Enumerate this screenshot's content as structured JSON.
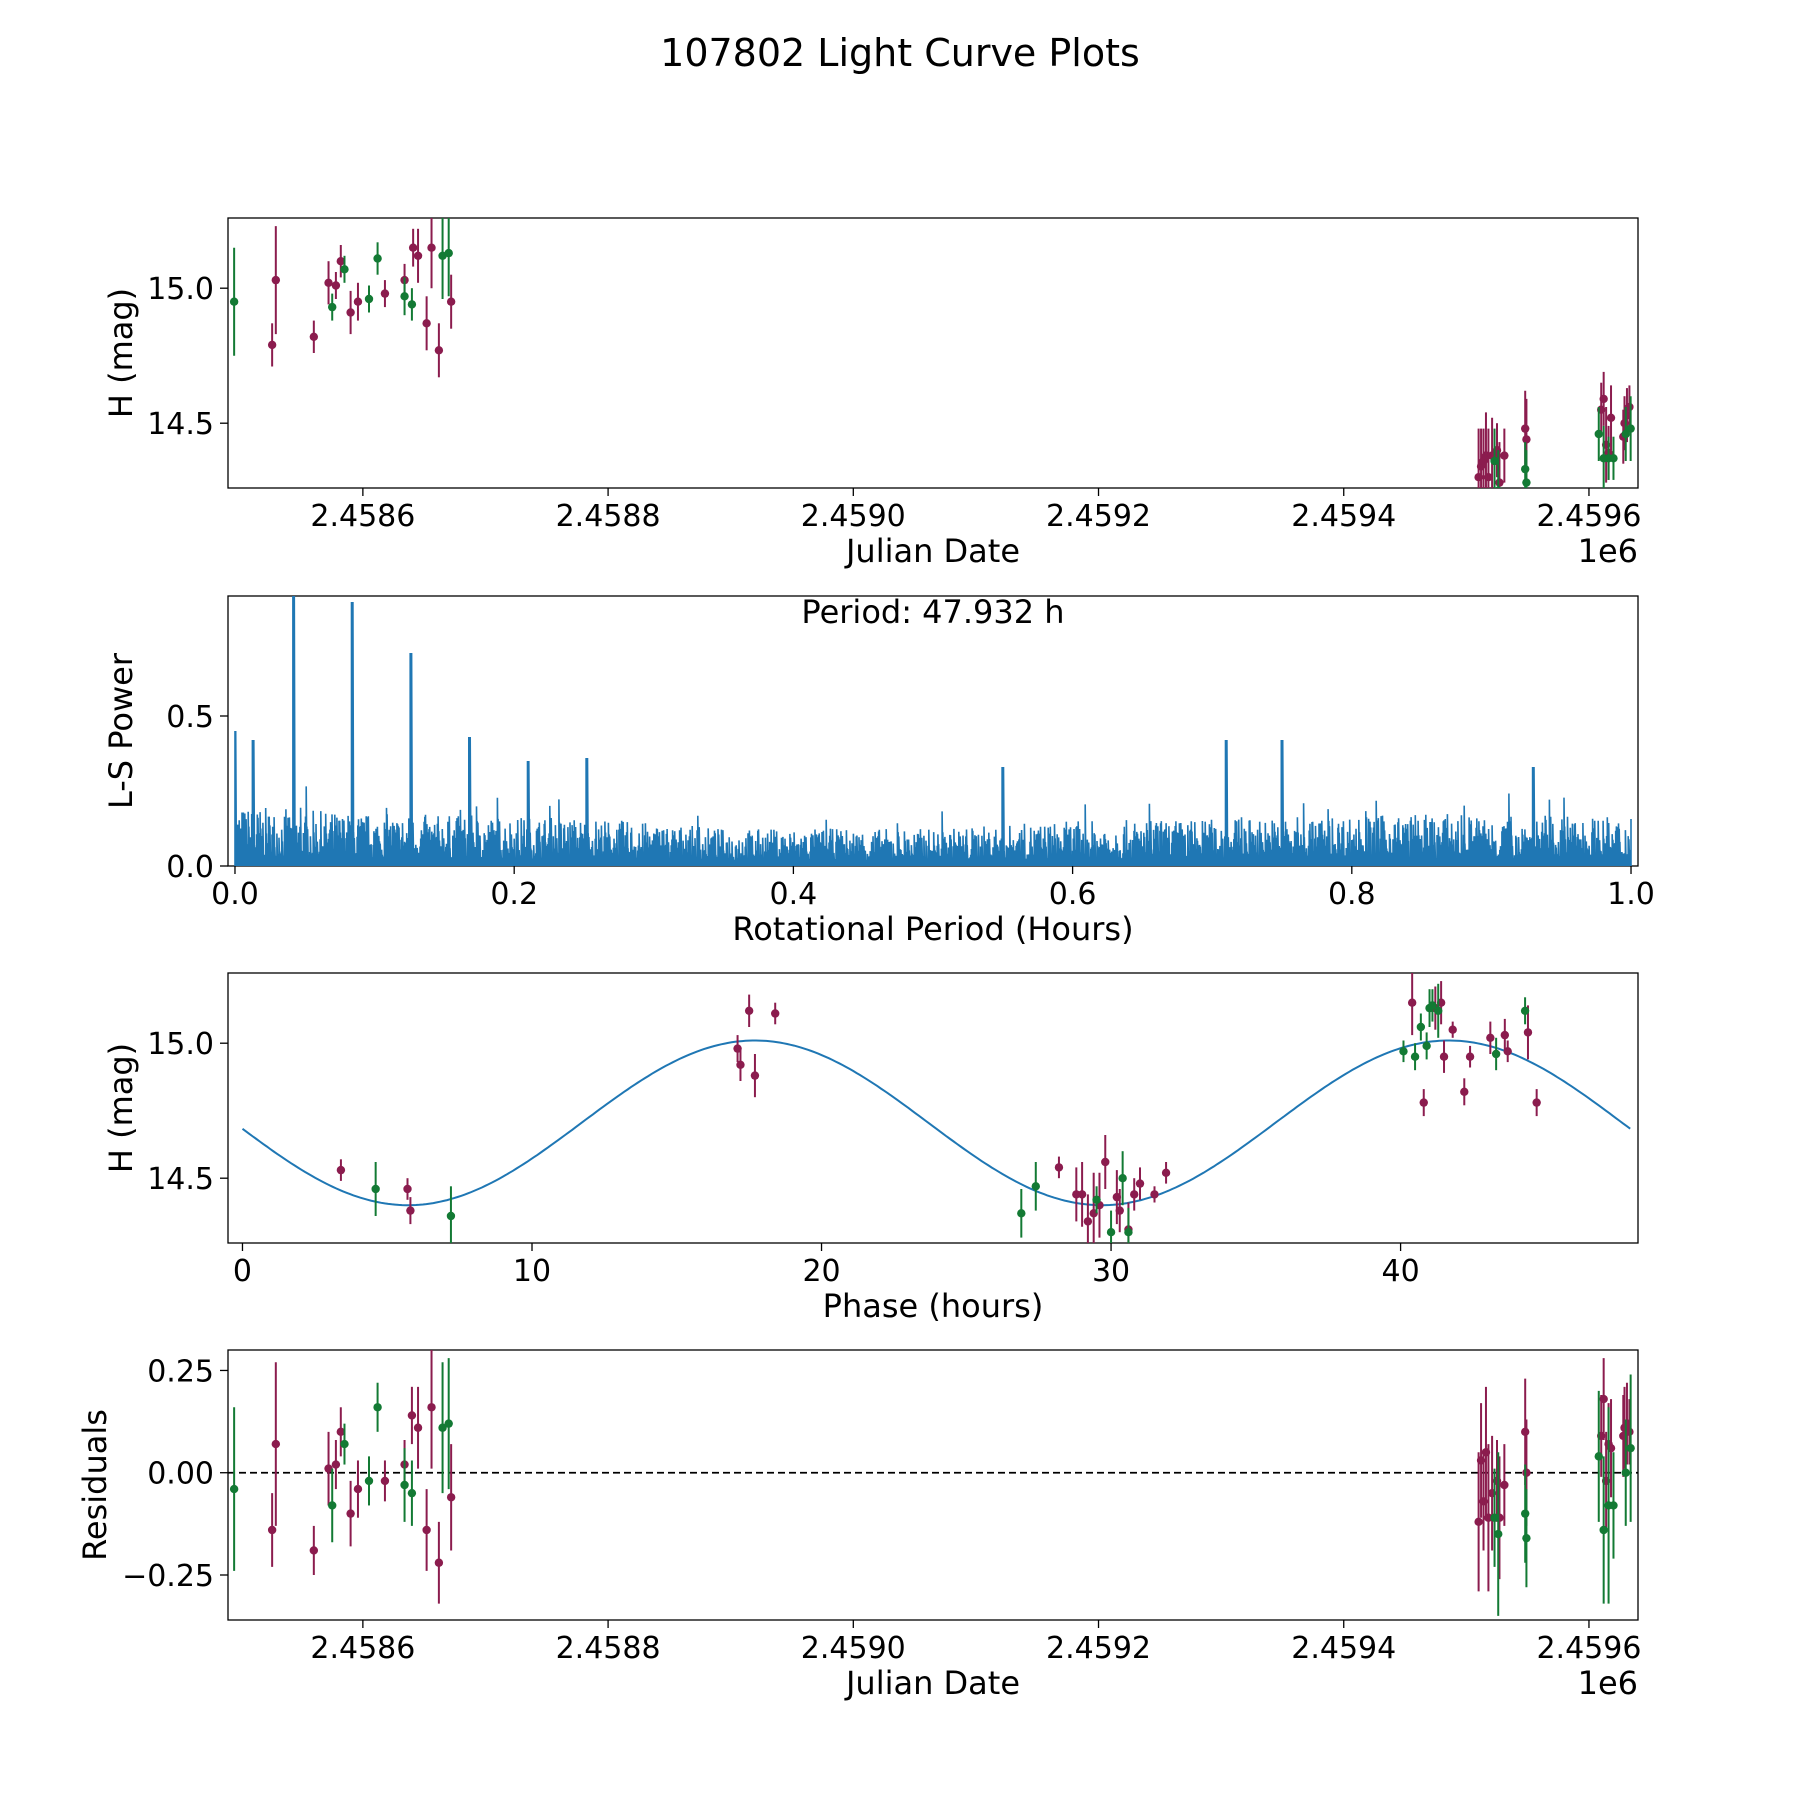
{
  "figure": {
    "title": "107802 Light Curve Plots",
    "colors": {
      "fit": "#1f77b4",
      "filter_a": "#8b1c4e",
      "filter_b": "#137a34",
      "axis": "#000000",
      "zero_line": "#000000"
    }
  },
  "chart_data": [
    {
      "id": "lightcurve",
      "type": "scatter",
      "xlabel": "Julian Date",
      "ylabel": "H (mag)",
      "offset_label": "1e6",
      "xlim": [
        2458490,
        2459640
      ],
      "ylim": [
        14.26,
        15.26
      ],
      "xticks": [
        2458600,
        2458800,
        2459000,
        2459200,
        2459400,
        2459600
      ],
      "xtick_labels": [
        "2.4586",
        "2.4588",
        "2.4590",
        "2.4592",
        "2.4594",
        "2.4596"
      ],
      "yticks": [
        14.5,
        15.0
      ],
      "ytick_labels": [
        "14.5",
        "15.0"
      ],
      "series": [
        {
          "name": "filter_a",
          "color": "#8b1c4e",
          "points": [
            [
              2458526,
              14.79,
              0.08
            ],
            [
              2458529,
              15.03,
              0.2
            ],
            [
              2458560,
              14.82,
              0.06
            ],
            [
              2458572,
              15.02,
              0.08
            ],
            [
              2458578,
              15.01,
              0.05
            ],
            [
              2458582,
              15.1,
              0.06
            ],
            [
              2458590,
              14.91,
              0.08
            ],
            [
              2458596,
              14.95,
              0.07
            ],
            [
              2458618,
              14.98,
              0.05
            ],
            [
              2458634,
              15.03,
              0.06
            ],
            [
              2458641,
              15.15,
              0.07
            ],
            [
              2458645,
              15.12,
              0.1
            ],
            [
              2458652,
              14.87,
              0.1
            ],
            [
              2458656,
              15.15,
              0.15
            ],
            [
              2458662,
              14.77,
              0.1
            ],
            [
              2458672,
              14.95,
              0.1
            ],
            [
              2459510,
              14.3,
              0.18
            ],
            [
              2459512,
              14.34,
              0.14
            ],
            [
              2459514,
              14.36,
              0.12
            ],
            [
              2459516,
              14.38,
              0.16
            ],
            [
              2459518,
              14.3,
              0.18
            ],
            [
              2459521,
              14.38,
              0.14
            ],
            [
              2459525,
              14.4,
              0.1
            ],
            [
              2459527,
              14.28,
              0.15
            ],
            [
              2459531,
              14.38,
              0.1
            ],
            [
              2459548,
              14.48,
              0.14
            ],
            [
              2459549,
              14.44,
              0.15
            ],
            [
              2459610,
              14.55,
              0.1
            ],
            [
              2459612,
              14.59,
              0.1
            ],
            [
              2459614,
              14.42,
              0.14
            ],
            [
              2459616,
              14.39,
              0.1
            ],
            [
              2459618,
              14.52,
              0.12
            ],
            [
              2459628,
              14.45,
              0.1
            ],
            [
              2459629,
              14.5,
              0.1
            ],
            [
              2459631,
              14.53,
              0.1
            ],
            [
              2459633,
              14.56,
              0.08
            ]
          ]
        },
        {
          "name": "filter_b",
          "color": "#137a34",
          "points": [
            [
              2458495,
              14.95,
              0.2
            ],
            [
              2458575,
              14.93,
              0.05
            ],
            [
              2458585,
              15.07,
              0.05
            ],
            [
              2458605,
              14.96,
              0.05
            ],
            [
              2458612,
              15.11,
              0.06
            ],
            [
              2458634,
              14.97,
              0.07
            ],
            [
              2458640,
              14.94,
              0.06
            ],
            [
              2458665,
              15.12,
              0.16
            ],
            [
              2458670,
              15.13,
              0.16
            ],
            [
              2459523,
              14.36,
              0.12
            ],
            [
              2459526,
              14.25,
              0.15
            ],
            [
              2459548,
              14.33,
              0.1
            ],
            [
              2459549,
              14.28,
              0.12
            ],
            [
              2459608,
              14.46,
              0.1
            ],
            [
              2459612,
              14.37,
              0.12
            ],
            [
              2459616,
              14.37,
              0.08
            ],
            [
              2459620,
              14.37,
              0.08
            ],
            [
              2459630,
              14.46,
              0.1
            ],
            [
              2459634,
              14.48,
              0.12
            ]
          ]
        }
      ]
    },
    {
      "id": "periodogram",
      "type": "line",
      "xlabel": "Rotational Period (Hours)",
      "ylabel": "L-S Power",
      "annotation": "Period: 47.932 h",
      "xlim": [
        -0.005,
        1.005
      ],
      "ylim": [
        0,
        0.9
      ],
      "xticks": [
        0.0,
        0.2,
        0.4,
        0.6,
        0.8,
        1.0
      ],
      "xtick_labels": [
        "0.0",
        "0.2",
        "0.4",
        "0.6",
        "0.8",
        "1.0"
      ],
      "yticks": [
        0.0,
        0.5
      ],
      "ytick_labels": [
        "0.0",
        "0.5"
      ],
      "color": "#1f77b4",
      "noise_profile": [
        [
          0.0,
          0.16
        ],
        [
          0.1,
          0.14
        ],
        [
          0.25,
          0.13
        ],
        [
          0.35,
          0.1
        ],
        [
          0.5,
          0.1
        ],
        [
          0.6,
          0.12
        ],
        [
          0.75,
          0.13
        ],
        [
          0.85,
          0.14
        ],
        [
          1.0,
          0.13
        ]
      ],
      "peaks": [
        [
          0.0,
          0.45
        ],
        [
          0.013,
          0.42
        ],
        [
          0.042,
          0.9
        ],
        [
          0.084,
          0.88
        ],
        [
          0.126,
          0.71
        ],
        [
          0.168,
          0.43
        ],
        [
          0.21,
          0.35
        ],
        [
          0.252,
          0.36
        ],
        [
          0.55,
          0.33
        ],
        [
          0.71,
          0.42
        ],
        [
          0.75,
          0.42
        ],
        [
          0.93,
          0.33
        ]
      ]
    },
    {
      "id": "phased",
      "type": "scatter",
      "xlabel": "Phase (hours)",
      "ylabel": "H (mag)",
      "xlim": [
        -0.5,
        48.2
      ],
      "ylim": [
        14.26,
        15.26
      ],
      "xticks": [
        0,
        10,
        20,
        30,
        40
      ],
      "xtick_labels": [
        "0",
        "10",
        "20",
        "30",
        "40"
      ],
      "yticks": [
        14.5,
        15.0
      ],
      "ytick_labels": [
        "14.5",
        "15.0"
      ],
      "fit": {
        "type": "sine",
        "mean": 14.705,
        "amplitude": 0.305,
        "period": 23.966,
        "x_at_max": 17.7,
        "x_range": [
          0,
          47.93
        ],
        "color": "#1f77b4"
      },
      "series": [
        {
          "name": "filter_a",
          "color": "#8b1c4e",
          "points": [
            [
              3.4,
              14.53,
              0.04
            ],
            [
              5.7,
              14.46,
              0.04
            ],
            [
              5.8,
              14.38,
              0.05
            ],
            [
              17.1,
              14.98,
              0.05
            ],
            [
              17.2,
              14.92,
              0.06
            ],
            [
              17.5,
              15.12,
              0.06
            ],
            [
              17.7,
              14.88,
              0.08
            ],
            [
              18.4,
              15.11,
              0.04
            ],
            [
              28.2,
              14.54,
              0.04
            ],
            [
              28.8,
              14.44,
              0.1
            ],
            [
              29.0,
              14.44,
              0.12
            ],
            [
              29.2,
              14.34,
              0.1
            ],
            [
              29.4,
              14.37,
              0.15
            ],
            [
              29.6,
              14.4,
              0.12
            ],
            [
              29.8,
              14.56,
              0.1
            ],
            [
              30.2,
              14.43,
              0.1
            ],
            [
              30.3,
              14.38,
              0.08
            ],
            [
              30.6,
              14.31,
              0.1
            ],
            [
              30.8,
              14.44,
              0.06
            ],
            [
              31.0,
              14.48,
              0.06
            ],
            [
              31.5,
              14.44,
              0.03
            ],
            [
              31.9,
              14.52,
              0.04
            ],
            [
              40.4,
              15.15,
              0.12
            ],
            [
              40.8,
              14.78,
              0.05
            ],
            [
              41.2,
              15.13,
              0.08
            ],
            [
              41.4,
              15.15,
              0.08
            ],
            [
              41.5,
              14.95,
              0.06
            ],
            [
              41.8,
              15.05,
              0.03
            ],
            [
              42.2,
              14.82,
              0.05
            ],
            [
              42.4,
              14.95,
              0.04
            ],
            [
              43.1,
              15.02,
              0.06
            ],
            [
              43.6,
              15.03,
              0.06
            ],
            [
              43.7,
              14.97,
              0.04
            ],
            [
              44.4,
              15.04,
              0.1
            ],
            [
              44.7,
              14.78,
              0.05
            ]
          ]
        },
        {
          "name": "filter_b",
          "color": "#137a34",
          "points": [
            [
              4.6,
              14.46,
              0.1
            ],
            [
              7.2,
              14.36,
              0.11
            ],
            [
              26.9,
              14.37,
              0.09
            ],
            [
              27.4,
              14.47,
              0.09
            ],
            [
              29.5,
              14.42,
              0.05
            ],
            [
              30.0,
              14.3,
              0.08
            ],
            [
              30.4,
              14.5,
              0.1
            ],
            [
              30.6,
              14.3,
              0.09
            ],
            [
              40.1,
              14.97,
              0.04
            ],
            [
              40.5,
              14.95,
              0.05
            ],
            [
              40.7,
              15.06,
              0.05
            ],
            [
              40.9,
              14.99,
              0.05
            ],
            [
              41.0,
              15.13,
              0.07
            ],
            [
              41.1,
              15.14,
              0.06
            ],
            [
              41.3,
              15.12,
              0.1
            ],
            [
              43.3,
              14.96,
              0.06
            ],
            [
              44.3,
              15.12,
              0.05
            ]
          ]
        }
      ]
    },
    {
      "id": "residuals",
      "type": "scatter",
      "xlabel": "Julian Date",
      "ylabel": "Residuals",
      "offset_label": "1e6",
      "xlim": [
        2458490,
        2459640
      ],
      "ylim": [
        -0.36,
        0.3
      ],
      "xticks": [
        2458600,
        2458800,
        2459000,
        2459200,
        2459400,
        2459600
      ],
      "xtick_labels": [
        "2.4586",
        "2.4588",
        "2.4590",
        "2.4592",
        "2.4594",
        "2.4596"
      ],
      "yticks": [
        0.25,
        0.0,
        -0.25
      ],
      "ytick_labels": [
        "0.25",
        "0.00",
        "−0.25"
      ],
      "zero_line": 0,
      "series": [
        {
          "name": "filter_a",
          "color": "#8b1c4e",
          "points": [
            [
              2458526,
              -0.14,
              0.09
            ],
            [
              2458529,
              0.07,
              0.2
            ],
            [
              2458560,
              -0.19,
              0.06
            ],
            [
              2458572,
              0.01,
              0.09
            ],
            [
              2458578,
              0.02,
              0.06
            ],
            [
              2458582,
              0.1,
              0.06
            ],
            [
              2458590,
              -0.1,
              0.08
            ],
            [
              2458596,
              -0.04,
              0.07
            ],
            [
              2458618,
              -0.02,
              0.05
            ],
            [
              2458634,
              0.02,
              0.06
            ],
            [
              2458640,
              0.14,
              0.07
            ],
            [
              2458645,
              0.11,
              0.1
            ],
            [
              2458652,
              -0.14,
              0.1
            ],
            [
              2458656,
              0.16,
              0.15
            ],
            [
              2458662,
              -0.22,
              0.1
            ],
            [
              2458672,
              -0.06,
              0.13
            ],
            [
              2459510,
              -0.12,
              0.17
            ],
            [
              2459512,
              0.03,
              0.14
            ],
            [
              2459514,
              -0.07,
              0.12
            ],
            [
              2459516,
              0.05,
              0.16
            ],
            [
              2459518,
              -0.11,
              0.18
            ],
            [
              2459521,
              -0.05,
              0.14
            ],
            [
              2459525,
              -0.02,
              0.1
            ],
            [
              2459527,
              -0.11,
              0.15
            ],
            [
              2459531,
              -0.03,
              0.1
            ],
            [
              2459548,
              0.1,
              0.13
            ],
            [
              2459549,
              0.0,
              0.13
            ],
            [
              2459610,
              0.09,
              0.1
            ],
            [
              2459612,
              0.18,
              0.1
            ],
            [
              2459614,
              -0.02,
              0.12
            ],
            [
              2459616,
              0.07,
              0.1
            ],
            [
              2459618,
              0.06,
              0.12
            ],
            [
              2459628,
              0.09,
              0.1
            ],
            [
              2459629,
              0.11,
              0.1
            ],
            [
              2459631,
              0.12,
              0.1
            ],
            [
              2459633,
              0.1,
              0.08
            ]
          ]
        },
        {
          "name": "filter_b",
          "color": "#137a34",
          "points": [
            [
              2458495,
              -0.04,
              0.2
            ],
            [
              2458575,
              -0.08,
              0.09
            ],
            [
              2458585,
              0.07,
              0.05
            ],
            [
              2458605,
              -0.02,
              0.06
            ],
            [
              2458612,
              0.16,
              0.06
            ],
            [
              2458634,
              -0.03,
              0.09
            ],
            [
              2458640,
              -0.05,
              0.08
            ],
            [
              2458665,
              0.11,
              0.16
            ],
            [
              2458670,
              0.12,
              0.16
            ],
            [
              2459523,
              -0.11,
              0.12
            ],
            [
              2459526,
              -0.15,
              0.2
            ],
            [
              2459548,
              -0.1,
              0.12
            ],
            [
              2459549,
              -0.16,
              0.12
            ],
            [
              2459608,
              0.04,
              0.16
            ],
            [
              2459612,
              -0.14,
              0.18
            ],
            [
              2459616,
              -0.08,
              0.24
            ],
            [
              2459620,
              -0.08,
              0.13
            ],
            [
              2459630,
              0.0,
              0.13
            ],
            [
              2459634,
              0.06,
              0.18
            ]
          ]
        }
      ]
    }
  ]
}
